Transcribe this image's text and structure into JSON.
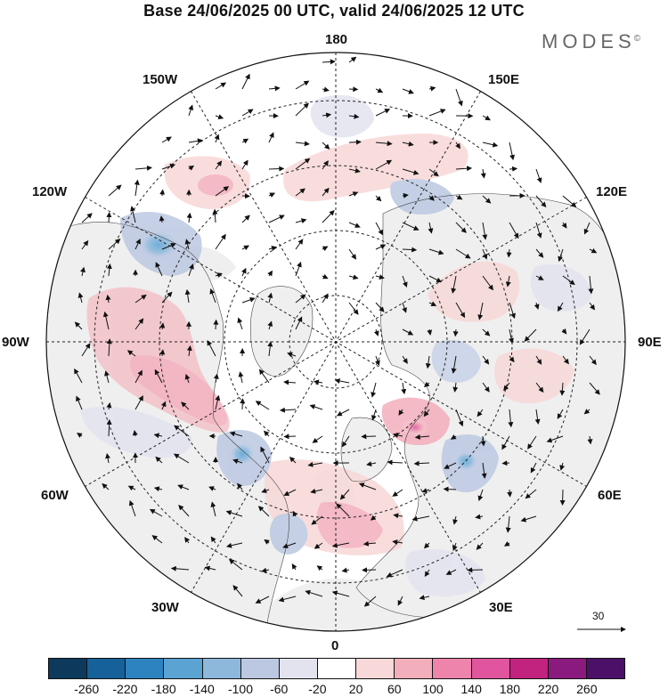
{
  "title": "Base 24/06/2025 00 UTC, valid 24/06/2025 12 UTC",
  "brand": "MODES",
  "brand_mark": "©",
  "meridian_labels": {
    "top": "180",
    "bottom": "0",
    "left": "90W",
    "right": "90E",
    "upper_left": "150W",
    "upper_right": "150E",
    "mid_upper_left": "120W",
    "mid_upper_right": "120E",
    "mid_lower_left": "60W",
    "mid_lower_right": "60E",
    "lower_left": "30W",
    "lower_right": "30E"
  },
  "vector_scale_label": "30",
  "colorbar": {
    "colors": [
      "#0d3a5c",
      "#16619a",
      "#2c83bf",
      "#5aa3d3",
      "#8db8dc",
      "#bcc8e2",
      "#e3e3f0",
      "#ffffff",
      "#f8d8d8",
      "#f3aebb",
      "#ee83ac",
      "#e0559d",
      "#c2237f",
      "#8a1a7d",
      "#4c1068"
    ],
    "ticks": [
      "-260",
      "-220",
      "-180",
      "-140",
      "-100",
      "-60",
      "-20",
      "20",
      "60",
      "100",
      "140",
      "180",
      "220",
      "260"
    ]
  },
  "map_colors": {
    "land": "#efefef",
    "ocean": "#ffffff",
    "grid": "#222222"
  }
}
